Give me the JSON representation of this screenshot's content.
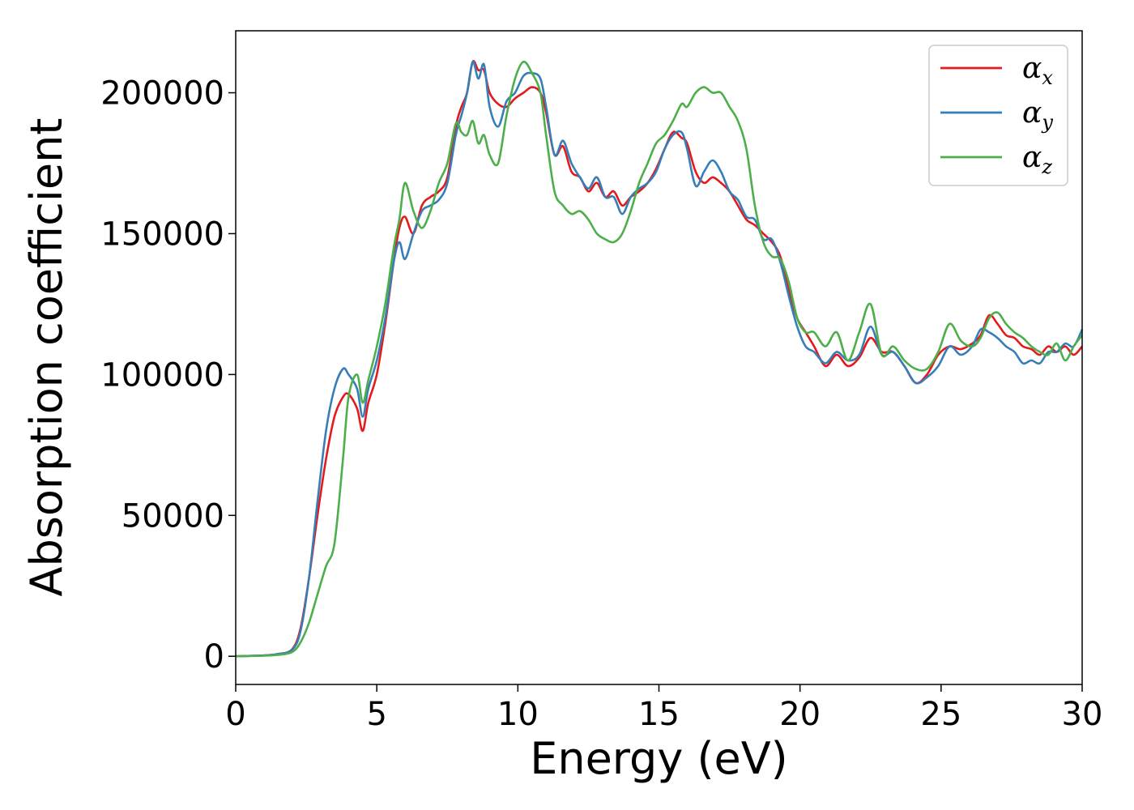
{
  "chart_data": {
    "type": "line",
    "title": "",
    "xlabel": "Energy (eV)",
    "ylabel": "Absorption coefficient",
    "xlim": [
      0,
      30
    ],
    "ylim": [
      -10000,
      222000
    ],
    "xticks": [
      0,
      5,
      10,
      15,
      20,
      25,
      30
    ],
    "yticks": [
      0,
      50000,
      100000,
      150000,
      200000
    ],
    "grid": false,
    "legend_position": "top-right",
    "series": [
      {
        "name": "α",
        "subscript": "x",
        "color": "#e41a1c",
        "x": [
          0,
          1,
          1.5,
          2,
          2.3,
          2.6,
          2.9,
          3.2,
          3.5,
          3.8,
          4.0,
          4.3,
          4.5,
          4.7,
          5.0,
          5.3,
          5.6,
          5.8,
          6.0,
          6.3,
          6.6,
          6.9,
          7.2,
          7.5,
          7.8,
          8.0,
          8.2,
          8.4,
          8.6,
          8.8,
          9.0,
          9.3,
          9.6,
          9.9,
          10.2,
          10.5,
          10.8,
          11.0,
          11.3,
          11.6,
          11.9,
          12.2,
          12.5,
          12.8,
          13.1,
          13.4,
          13.7,
          14.0,
          14.3,
          14.6,
          14.9,
          15.2,
          15.5,
          15.8,
          16.0,
          16.3,
          16.6,
          16.9,
          17.2,
          17.5,
          17.8,
          18.1,
          18.4,
          18.7,
          19.0,
          19.3,
          19.6,
          19.9,
          20.2,
          20.5,
          20.9,
          21.3,
          21.7,
          22.1,
          22.5,
          22.9,
          23.3,
          23.7,
          24.1,
          24.5,
          24.9,
          25.3,
          25.7,
          26.1,
          26.4,
          26.7,
          27.0,
          27.3,
          27.6,
          27.9,
          28.2,
          28.5,
          28.8,
          29.1,
          29.4,
          29.7,
          30
        ],
        "values": [
          0,
          300,
          800,
          2500,
          10000,
          28000,
          50000,
          70000,
          85000,
          92000,
          93000,
          88000,
          80000,
          90000,
          100000,
          118000,
          140000,
          152000,
          156000,
          150000,
          160000,
          163000,
          165000,
          170000,
          188000,
          195000,
          200000,
          211000,
          208000,
          208000,
          200000,
          196000,
          195000,
          198000,
          200000,
          202000,
          200000,
          193000,
          178000,
          181000,
          172000,
          170000,
          165000,
          168000,
          163000,
          165000,
          160000,
          163000,
          165000,
          168000,
          173000,
          180000,
          186000,
          184000,
          182000,
          172000,
          168000,
          170000,
          168000,
          165000,
          160000,
          155000,
          153000,
          150000,
          147000,
          142000,
          130000,
          120000,
          115000,
          110000,
          103000,
          107000,
          103000,
          106000,
          113000,
          108000,
          108000,
          103000,
          97000,
          100000,
          107000,
          110000,
          109000,
          111000,
          114000,
          121000,
          118000,
          114000,
          113000,
          110000,
          109000,
          107000,
          110000,
          108000,
          110000,
          107000,
          110000
        ]
      },
      {
        "name": "α",
        "subscript": "y",
        "color": "#377eb8",
        "x": [
          0,
          1,
          1.5,
          2,
          2.3,
          2.6,
          2.9,
          3.2,
          3.5,
          3.8,
          4.0,
          4.3,
          4.5,
          4.7,
          5.0,
          5.3,
          5.6,
          5.8,
          6.0,
          6.3,
          6.6,
          6.9,
          7.2,
          7.5,
          7.8,
          8.0,
          8.2,
          8.4,
          8.6,
          8.8,
          9.0,
          9.3,
          9.6,
          9.9,
          10.2,
          10.5,
          10.8,
          11.0,
          11.3,
          11.6,
          11.9,
          12.2,
          12.5,
          12.8,
          13.1,
          13.4,
          13.7,
          14.0,
          14.3,
          14.6,
          14.9,
          15.2,
          15.5,
          15.8,
          16.0,
          16.3,
          16.6,
          16.9,
          17.2,
          17.5,
          17.8,
          18.1,
          18.4,
          18.7,
          19.0,
          19.3,
          19.6,
          19.9,
          20.2,
          20.5,
          20.9,
          21.3,
          21.7,
          22.1,
          22.5,
          22.9,
          23.3,
          23.7,
          24.1,
          24.5,
          24.9,
          25.3,
          25.7,
          26.1,
          26.4,
          26.7,
          27.0,
          27.3,
          27.6,
          27.9,
          28.2,
          28.5,
          28.8,
          29.1,
          29.4,
          29.7,
          30
        ],
        "values": [
          0,
          300,
          800,
          2300,
          9000,
          28000,
          55000,
          80000,
          95000,
          102000,
          100000,
          95000,
          85000,
          95000,
          105000,
          120000,
          140000,
          147000,
          141000,
          150000,
          158000,
          160000,
          162000,
          168000,
          185000,
          192000,
          200000,
          211000,
          205000,
          210000,
          195000,
          188000,
          197000,
          200000,
          206000,
          207000,
          205000,
          195000,
          178000,
          183000,
          175000,
          170000,
          166000,
          170000,
          163000,
          163000,
          157000,
          163000,
          166000,
          168000,
          172000,
          180000,
          185000,
          186000,
          180000,
          167000,
          172000,
          176000,
          172000,
          165000,
          162000,
          156000,
          155000,
          148000,
          148000,
          140000,
          128000,
          117000,
          110000,
          108000,
          104000,
          108000,
          105000,
          107000,
          117000,
          107000,
          108000,
          103000,
          97000,
          99000,
          103000,
          110000,
          107000,
          110000,
          116000,
          115000,
          113000,
          110000,
          108000,
          104000,
          105000,
          104000,
          108000,
          108000,
          111000,
          110000,
          116000
        ]
      },
      {
        "name": "α",
        "subscript": "z",
        "color": "#4daf4a",
        "x": [
          0,
          1,
          1.5,
          2,
          2.3,
          2.6,
          2.9,
          3.2,
          3.5,
          3.8,
          4.0,
          4.3,
          4.5,
          4.7,
          5.0,
          5.3,
          5.6,
          5.8,
          6.0,
          6.3,
          6.6,
          6.9,
          7.2,
          7.5,
          7.8,
          8.0,
          8.2,
          8.4,
          8.6,
          8.8,
          9.0,
          9.3,
          9.6,
          9.9,
          10.2,
          10.5,
          10.8,
          11.0,
          11.3,
          11.6,
          11.9,
          12.2,
          12.5,
          12.8,
          13.1,
          13.4,
          13.7,
          14.0,
          14.3,
          14.6,
          14.9,
          15.2,
          15.5,
          15.8,
          16.0,
          16.3,
          16.6,
          16.9,
          17.2,
          17.5,
          17.8,
          18.1,
          18.4,
          18.7,
          19.0,
          19.3,
          19.6,
          19.9,
          20.2,
          20.5,
          20.9,
          21.3,
          21.7,
          22.1,
          22.5,
          22.9,
          23.3,
          23.7,
          24.1,
          24.5,
          24.9,
          25.3,
          25.7,
          26.1,
          26.4,
          26.7,
          27.0,
          27.3,
          27.6,
          27.9,
          28.2,
          28.5,
          28.8,
          29.1,
          29.4,
          29.7,
          30
        ],
        "values": [
          0,
          200,
          500,
          1500,
          5000,
          12000,
          22000,
          32000,
          40000,
          70000,
          92000,
          100000,
          90000,
          98000,
          110000,
          125000,
          145000,
          155000,
          168000,
          158000,
          152000,
          158000,
          168000,
          175000,
          189000,
          186000,
          185000,
          190000,
          182000,
          185000,
          178000,
          175000,
          192000,
          205000,
          211000,
          207000,
          200000,
          185000,
          165000,
          160000,
          157000,
          158000,
          155000,
          150000,
          148000,
          147000,
          150000,
          158000,
          168000,
          175000,
          182000,
          185000,
          190000,
          196000,
          195000,
          200000,
          202000,
          200000,
          200000,
          195000,
          190000,
          180000,
          160000,
          147000,
          142000,
          141000,
          133000,
          120000,
          115000,
          115000,
          110000,
          115000,
          105000,
          115000,
          125000,
          107000,
          110000,
          105000,
          102000,
          102000,
          108000,
          118000,
          112000,
          110000,
          113000,
          120000,
          122000,
          118000,
          115000,
          113000,
          110000,
          108000,
          107000,
          111000,
          105000,
          110000,
          114000
        ]
      }
    ]
  }
}
